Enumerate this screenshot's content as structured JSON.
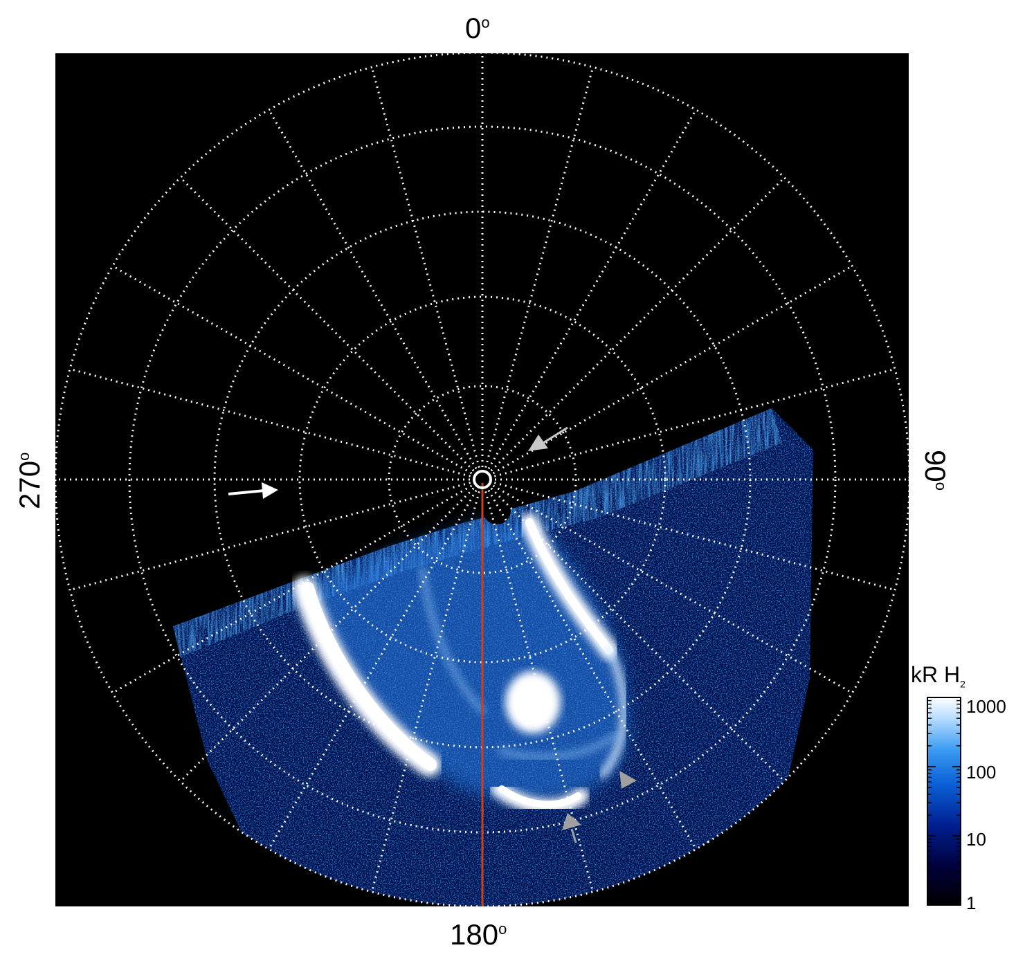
{
  "axis_labels": {
    "top": "0",
    "bottom": "180",
    "left": "270",
    "right": "90",
    "degree_symbol": "o"
  },
  "colorbar": {
    "title_main": "kR H",
    "title_sub": "2",
    "ticks": [
      "1000",
      "100",
      "10",
      "1"
    ],
    "colors": [
      "#000000",
      "#00003a",
      "#001e8f",
      "#0a5fd6",
      "#3c9cf2",
      "#b8dcff",
      "#ffffff"
    ],
    "scale": "log"
  },
  "colors": {
    "background": "#000000",
    "grid": "#ffffff",
    "meridian_line": "#c8401e",
    "arrow_white": "#ffffff",
    "arrow_grey": "#a0a0a0"
  },
  "annotations": {
    "arrows": [
      {
        "color": "white",
        "pointing": "right",
        "location": "left of pole"
      },
      {
        "color": "grey",
        "pointing": "down-left",
        "location": "upper right of pole"
      },
      {
        "color": "grey",
        "pointing": "right",
        "location": "lower right of oval"
      },
      {
        "color": "grey",
        "pointing": "up-left",
        "location": "bottom of oval"
      }
    ]
  },
  "image": {
    "subject": "polar projection of ultraviolet aurora emission",
    "projection": "polar",
    "grid": true
  }
}
